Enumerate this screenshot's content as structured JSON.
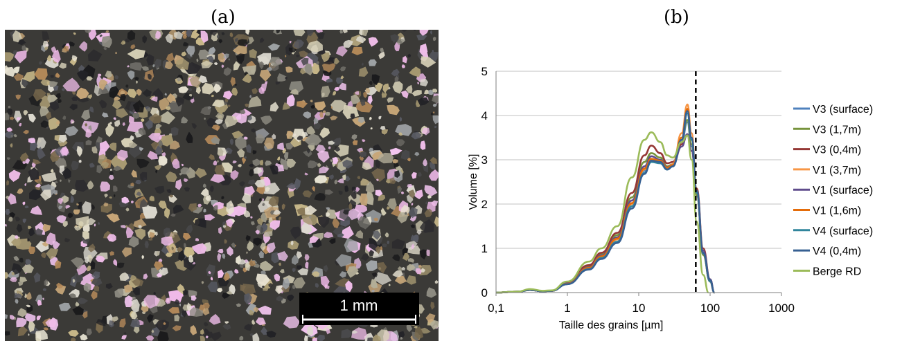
{
  "panels": {
    "a_label": "(a)",
    "b_label": "(b)"
  },
  "micrograph": {
    "scale_bar_label": "1 mm"
  },
  "chart_data": {
    "type": "line",
    "title": "",
    "xlabel": "Taille des grains [µm]",
    "ylabel": "Volume [%]",
    "xscale": "log",
    "xlim": [
      0.1,
      1000
    ],
    "ylim": [
      0,
      5
    ],
    "xticks": [
      "0,1",
      "1",
      "10",
      "100",
      "1000"
    ],
    "yticks": [
      "0",
      "1",
      "2",
      "3",
      "4",
      "5"
    ],
    "grid": "horizontal",
    "legend_position": "right",
    "vertical_line": {
      "x": 63,
      "style": "dashed",
      "color": "#000000"
    },
    "series": [
      {
        "name": "V3 (surface)",
        "color": "#4f81bd",
        "x": [
          0.1,
          0.2,
          0.3,
          0.45,
          0.6,
          1,
          2,
          3,
          5,
          8,
          12,
          15,
          20,
          25,
          30,
          40,
          48,
          55,
          65,
          80,
          100,
          115
        ],
        "y": [
          0,
          0.02,
          0.06,
          0.03,
          0.04,
          0.2,
          0.55,
          0.82,
          1.2,
          2.0,
          2.75,
          2.98,
          2.95,
          2.8,
          2.85,
          3.4,
          3.85,
          3.3,
          2.2,
          0.9,
          0.3,
          0
        ]
      },
      {
        "name": "V3 (1,7m)",
        "color": "#77933c",
        "x": [
          0.1,
          0.2,
          0.3,
          0.45,
          0.6,
          1,
          2,
          3,
          5,
          8,
          12,
          15,
          20,
          25,
          30,
          40,
          48,
          55,
          65,
          80,
          100,
          115
        ],
        "y": [
          0,
          0.02,
          0.06,
          0.03,
          0.04,
          0.22,
          0.6,
          0.88,
          1.3,
          2.15,
          2.95,
          3.15,
          3.05,
          2.85,
          2.9,
          3.5,
          3.9,
          3.35,
          2.2,
          0.85,
          0.25,
          0
        ]
      },
      {
        "name": "V3 (0,4m)",
        "color": "#953735",
        "x": [
          0.1,
          0.2,
          0.3,
          0.45,
          0.6,
          1,
          2,
          3,
          5,
          8,
          12,
          15,
          20,
          25,
          30,
          40,
          48,
          55,
          65,
          80,
          100,
          115
        ],
        "y": [
          0,
          0.02,
          0.06,
          0.03,
          0.04,
          0.24,
          0.62,
          0.9,
          1.35,
          2.25,
          3.1,
          3.32,
          3.15,
          2.92,
          2.95,
          3.35,
          3.55,
          3.2,
          2.35,
          1.0,
          0.3,
          0
        ]
      },
      {
        "name": "V1 (3,7m)",
        "color": "#f79646",
        "x": [
          0.1,
          0.2,
          0.3,
          0.45,
          0.6,
          1,
          2,
          3,
          5,
          8,
          12,
          15,
          20,
          25,
          30,
          40,
          48,
          55,
          65,
          80,
          100,
          115
        ],
        "y": [
          0,
          0.02,
          0.06,
          0.03,
          0.04,
          0.2,
          0.55,
          0.8,
          1.2,
          2.0,
          2.78,
          3.0,
          2.98,
          2.82,
          2.9,
          3.6,
          4.25,
          3.6,
          2.3,
          0.9,
          0.25,
          0
        ]
      },
      {
        "name": "V1 (surface)",
        "color": "#5f4b8b",
        "x": [
          0.1,
          0.2,
          0.3,
          0.45,
          0.6,
          1,
          2,
          3,
          5,
          8,
          12,
          15,
          20,
          25,
          30,
          40,
          48,
          55,
          65,
          80,
          100,
          115
        ],
        "y": [
          0,
          0.02,
          0.06,
          0.03,
          0.04,
          0.21,
          0.57,
          0.84,
          1.25,
          2.08,
          2.85,
          3.08,
          3.0,
          2.83,
          2.88,
          3.3,
          3.58,
          3.2,
          2.3,
          0.95,
          0.3,
          0
        ]
      },
      {
        "name": "V1 (1,6m)",
        "color": "#e46c0a",
        "x": [
          0.1,
          0.2,
          0.3,
          0.45,
          0.6,
          1,
          2,
          3,
          5,
          8,
          12,
          15,
          20,
          25,
          30,
          40,
          48,
          55,
          65,
          80,
          100,
          115
        ],
        "y": [
          0,
          0.02,
          0.06,
          0.03,
          0.04,
          0.2,
          0.56,
          0.82,
          1.22,
          2.02,
          2.8,
          3.02,
          2.98,
          2.82,
          2.88,
          3.5,
          4.15,
          3.5,
          2.25,
          0.88,
          0.25,
          0
        ]
      },
      {
        "name": "V4 (surface)",
        "color": "#31859c",
        "x": [
          0.1,
          0.2,
          0.3,
          0.45,
          0.6,
          1,
          2,
          3,
          5,
          8,
          12,
          15,
          20,
          25,
          30,
          40,
          48,
          55,
          65,
          80,
          100,
          115
        ],
        "y": [
          0,
          0.02,
          0.06,
          0.03,
          0.04,
          0.19,
          0.53,
          0.78,
          1.15,
          1.95,
          2.7,
          2.95,
          2.92,
          2.78,
          2.85,
          3.45,
          4.05,
          3.45,
          2.25,
          0.88,
          0.25,
          0
        ]
      },
      {
        "name": "V4 (0,4m)",
        "color": "#376092",
        "x": [
          0.1,
          0.2,
          0.3,
          0.45,
          0.6,
          1,
          2,
          3,
          5,
          8,
          12,
          15,
          20,
          25,
          30,
          40,
          48,
          55,
          65,
          80,
          100,
          115
        ],
        "y": [
          0,
          0.02,
          0.06,
          0.03,
          0.04,
          0.19,
          0.52,
          0.76,
          1.12,
          1.9,
          2.68,
          2.98,
          2.95,
          2.78,
          2.85,
          3.45,
          4.1,
          3.5,
          2.3,
          0.9,
          0.28,
          0
        ]
      },
      {
        "name": "Berge RD",
        "color": "#9bbb59",
        "x": [
          0.1,
          0.2,
          0.3,
          0.45,
          0.6,
          1,
          2,
          3,
          5,
          8,
          12,
          15,
          20,
          25,
          30,
          40,
          48,
          55,
          65,
          80,
          95
        ],
        "y": [
          0,
          0.02,
          0.08,
          0.04,
          0.05,
          0.25,
          0.7,
          1.0,
          1.5,
          2.6,
          3.45,
          3.62,
          3.4,
          3.1,
          3.05,
          3.4,
          3.55,
          3.0,
          1.6,
          0.4,
          0
        ]
      }
    ]
  }
}
